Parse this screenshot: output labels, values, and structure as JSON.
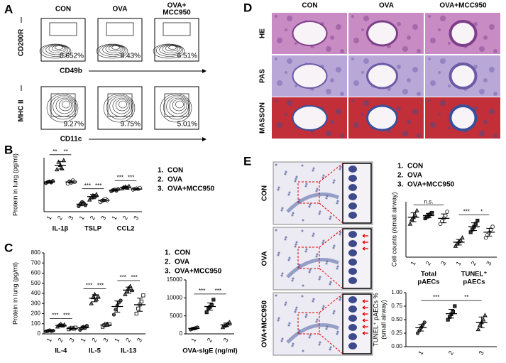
{
  "panel_letters": [
    "A",
    "B",
    "C",
    "D",
    "E"
  ],
  "panel_A": {
    "columns": [
      [
        "CON"
      ],
      [
        "OVA"
      ],
      [
        "OVA+",
        "MCC950"
      ]
    ],
    "rows": [
      {
        "y_label": "CD200R",
        "x_label": "CD49b",
        "percentages": [
          "0.652%",
          "8.43%",
          "6.51%"
        ]
      },
      {
        "y_label": "MHC II",
        "x_label": "CD11c",
        "percentages": [
          "9.27%",
          "9.75%",
          "5.01%"
        ]
      }
    ]
  },
  "panel_D": {
    "columns": [
      "CON",
      "OVA",
      "OVA+MCC950"
    ],
    "rows": [
      "HE",
      "PAS",
      "MASSON"
    ]
  },
  "panel_E": {
    "rows": [
      "CON",
      "OVA",
      "OVA+MCC950"
    ]
  },
  "chart_data": [
    {
      "type": "dotplot",
      "ylabel": [
        "Protein in lung (pg/ml)"
      ],
      "ylim": [
        0,
        100
      ],
      "markers": [
        "circle",
        "triangle",
        "open-circle"
      ],
      "legend": [
        {
          "number": "1.",
          "label": "CON"
        },
        {
          "number": "2.",
          "label": "OVA"
        },
        {
          "number": "3.",
          "label": "OVA+MCC950"
        }
      ],
      "groups": [
        {
          "name": [
            "IL-1β"
          ],
          "categories": [
            "1",
            "2",
            "3"
          ],
          "values": [
            55,
            86,
            55
          ],
          "errors": [
            2,
            7,
            2
          ],
          "points": [
            [
              53,
              55,
              56,
              54,
              57
            ],
            [
              78,
              92,
              86,
              80,
              95
            ],
            [
              52,
              56,
              54,
              58,
              55
            ]
          ],
          "significance": [
            {
              "label": "**",
              "pair": [
                "1",
                "2"
              ]
            },
            {
              "label": "**",
              "pair": [
                "2",
                "3"
              ]
            }
          ]
        },
        {
          "name": [
            "TSLP"
          ],
          "categories": [
            "1",
            "2",
            "3"
          ],
          "values": [
            14,
            28,
            21
          ],
          "errors": [
            3,
            4,
            2
          ],
          "points": [
            [
              10,
              14,
              18,
              16,
              12
            ],
            [
              22,
              26,
              30,
              28,
              32
            ],
            [
              18,
              20,
              22,
              24,
              21
            ]
          ],
          "significance": [
            {
              "label": "***",
              "pair": [
                "1",
                "2"
              ]
            },
            {
              "label": "***",
              "pair": [
                "2",
                "3"
              ]
            }
          ]
        },
        {
          "name": [
            "CCL2"
          ],
          "categories": [
            "1",
            "2",
            "3"
          ],
          "values": [
            40,
            45,
            42
          ],
          "errors": [
            1,
            2,
            1
          ],
          "points": [
            [
              38,
              40,
              41,
              39,
              42
            ],
            [
              43,
              45,
              46,
              44,
              47
            ],
            [
              41,
              42,
              43,
              42,
              44
            ]
          ],
          "significance": [
            {
              "label": "***",
              "pair": [
                "1",
                "2"
              ]
            },
            {
              "label": "***",
              "pair": [
                "2",
                "3"
              ]
            }
          ]
        }
      ]
    },
    {
      "type": "dotplot",
      "ylabel": [
        "Protein in lung (pg/ml)"
      ],
      "ylim": [
        0,
        800
      ],
      "yticks": [
        0,
        100,
        200,
        300,
        400,
        500,
        600,
        700,
        800
      ],
      "markers": [
        "circle",
        "triangle",
        "open-square"
      ],
      "groups": [
        {
          "name": [
            "IL-4"
          ],
          "categories": [
            "1",
            "2",
            "3"
          ],
          "values": [
            30,
            84,
            54
          ],
          "errors": [
            4,
            10,
            7
          ],
          "points": [
            [
              25,
              30,
              35,
              28,
              32
            ],
            [
              70,
              85,
              95,
              80,
              90
            ],
            [
              45,
              55,
              60,
              50,
              62
            ]
          ],
          "significance": [
            {
              "label": "***",
              "pair": [
                "1",
                "2"
              ]
            },
            {
              "label": "***",
              "pair": [
                "2",
                "3"
              ]
            }
          ]
        },
        {
          "name": [
            "IL-5"
          ],
          "categories": [
            "1",
            "2",
            "3"
          ],
          "values": [
            61,
            352,
            88
          ],
          "errors": [
            15,
            35,
            12
          ],
          "points": [
            [
              40,
              55,
              70,
              60,
              80
            ],
            [
              300,
              360,
              390,
              340,
              370
            ],
            [
              70,
              85,
              100,
              90,
              95
            ]
          ],
          "significance": [
            {
              "label": "***",
              "pair": [
                "1",
                "2"
              ]
            },
            {
              "label": "***",
              "pair": [
                "2",
                "3"
              ]
            }
          ]
        },
        {
          "name": [
            "IL-13"
          ],
          "categories": [
            "1",
            "2",
            "3"
          ],
          "values": [
            270,
            432,
            288
          ],
          "errors": [
            55,
            30,
            65
          ],
          "points": [
            [
              190,
              240,
              280,
              310,
              330
            ],
            [
              390,
              420,
              450,
              470,
              430
            ],
            [
              200,
              250,
              290,
              320,
              380
            ]
          ],
          "significance": [
            {
              "label": "***",
              "pair": [
                "1",
                "2"
              ]
            },
            {
              "label": "***",
              "pair": [
                "2",
                "3"
              ]
            }
          ]
        }
      ]
    },
    {
      "type": "dotplot",
      "ylim": [
        0,
        15000
      ],
      "yticks": [
        0,
        5000,
        10000,
        15000
      ],
      "markers": [
        "circle",
        "square",
        "triangle"
      ],
      "legend": [
        {
          "number": "1.",
          "label": "CON"
        },
        {
          "number": "2.",
          "label": "OVA"
        },
        {
          "number": "3.",
          "label": "OVA+MCC950"
        }
      ],
      "groups": [
        {
          "name": [
            "OVA-sIgE (ng/ml)"
          ],
          "categories": [
            "1",
            "2",
            "3"
          ],
          "values": [
            1500,
            7600,
            2500
          ],
          "errors": [
            200,
            1000,
            500
          ],
          "points": [
            [
              1200,
              1400,
              1500,
              1600,
              1800
            ],
            [
              6000,
              7000,
              7500,
              8000,
              9500
            ],
            [
              1800,
              2200,
              2500,
              2800,
              3200
            ]
          ],
          "significance": [
            {
              "label": "***",
              "pair": [
                "1",
                "2"
              ]
            },
            {
              "label": "***",
              "pair": [
                "2",
                "3"
              ]
            }
          ]
        }
      ]
    },
    {
      "type": "dotplot",
      "ylabel": [
        "Cell counts (/small airway)"
      ],
      "ylim": [
        0,
        100
      ],
      "markers": [
        "triangle",
        "square",
        "open-circle"
      ],
      "legend": [
        {
          "number": "1.",
          "label": "CON"
        },
        {
          "number": "2.",
          "label": "OVA"
        },
        {
          "number": "3.",
          "label": "OVA+MCC950"
        }
      ],
      "groups": [
        {
          "name": [
            "Total",
            "pAECs"
          ],
          "categories": [
            "1",
            "2",
            "3"
          ],
          "values": [
            72,
            75,
            70
          ],
          "errors": [
            8,
            4,
            8
          ],
          "points": [
            [
              60,
              68,
              72,
              76,
              84
            ],
            [
              70,
              73,
              75,
              78,
              80
            ],
            [
              60,
              65,
              70,
              75,
              82
            ]
          ],
          "significance": [
            {
              "label": "n.s.",
              "pair": [
                "1",
                "3"
              ]
            }
          ]
        },
        {
          "name": [
            "TUNEL⁺",
            "pAECs"
          ],
          "categories": [
            "1",
            "2",
            "3"
          ],
          "values": [
            27,
            55,
            45
          ],
          "errors": [
            5,
            7,
            7
          ],
          "points": [
            [
              20,
              24,
              28,
              30,
              35
            ],
            [
              45,
              50,
              55,
              60,
              66
            ],
            [
              35,
              40,
              44,
              50,
              55
            ]
          ],
          "significance": [
            {
              "label": "***",
              "pair": [
                "1",
                "2"
              ]
            },
            {
              "label": "*",
              "pair": [
                "2",
                "3"
              ]
            }
          ]
        }
      ]
    },
    {
      "type": "dotplot",
      "ylabel": [
        "TUNEL⁺ pAECs %",
        "(small airway)"
      ],
      "ylim": [
        0,
        1
      ],
      "yticks": [
        {
          "value": 0,
          "label": "0.00"
        },
        {
          "value": 0.25,
          "label": "0.25"
        },
        {
          "value": 0.5,
          "label": "0.50"
        },
        {
          "value": 0.75,
          "label": "0.75"
        },
        {
          "value": 1,
          "label": "1.00"
        }
      ],
      "markers": [
        "circle",
        "square",
        "triangle"
      ],
      "groups": [
        {
          "name": [],
          "categories": [
            "1",
            "2",
            "3"
          ],
          "values": [
            0.35,
            0.61,
            0.45
          ],
          "errors": [
            0.06,
            0.08,
            0.1
          ],
          "points": [
            [
              0.25,
              0.3,
              0.35,
              0.4,
              0.45
            ],
            [
              0.5,
              0.55,
              0.6,
              0.65,
              0.75
            ],
            [
              0.32,
              0.4,
              0.45,
              0.5,
              0.58
            ]
          ],
          "significance": [
            {
              "label": "***",
              "pair": [
                "1",
                "2"
              ]
            },
            {
              "label": "**",
              "pair": [
                "2",
                "3"
              ]
            }
          ]
        }
      ]
    }
  ]
}
